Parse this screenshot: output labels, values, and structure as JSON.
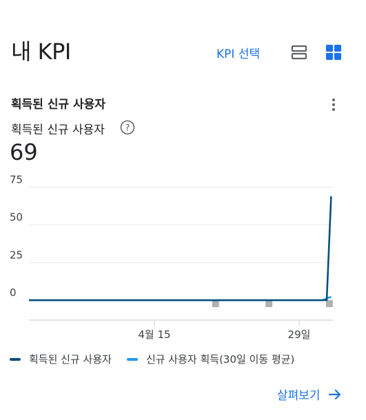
{
  "header": {
    "title": "내 KPI",
    "kpi_select_label": "KPI 선택"
  },
  "card": {
    "title": "획득된 신규 사용자",
    "metric_label": "획득된 신규 사용자",
    "metric_value": "69",
    "explore_label": "살펴보기"
  },
  "colors": {
    "accent": "#1a73e8",
    "series_main": "#0b4f7c",
    "series_avg": "#1e9bef",
    "marker": "#b0b0b0"
  },
  "icons": [
    "list-view-icon",
    "grid-view-icon",
    "more-vert-icon",
    "help-icon",
    "arrow-right-icon"
  ],
  "chart_data": {
    "type": "line",
    "x_tick_labels": [
      "4월 15",
      "29일"
    ],
    "y_ticks": [
      0,
      25,
      50,
      75
    ],
    "ylim": [
      -10,
      80
    ],
    "grid": true,
    "legend_position": "bottom",
    "series": [
      {
        "name": "획득된 신규 사용자",
        "x_range": [
          "start",
          "end"
        ],
        "points": [
          [
            0,
            0
          ],
          [
            33,
            0
          ],
          [
            33.5,
            0
          ],
          [
            34,
            69
          ]
        ]
      },
      {
        "name": "신규 사용자 획득(30일 이동 평균)",
        "points": [
          [
            0,
            0
          ],
          [
            33,
            0
          ],
          [
            34,
            2.3
          ]
        ]
      }
    ],
    "markers_at_x": [
      21,
      27,
      33.8
    ]
  }
}
